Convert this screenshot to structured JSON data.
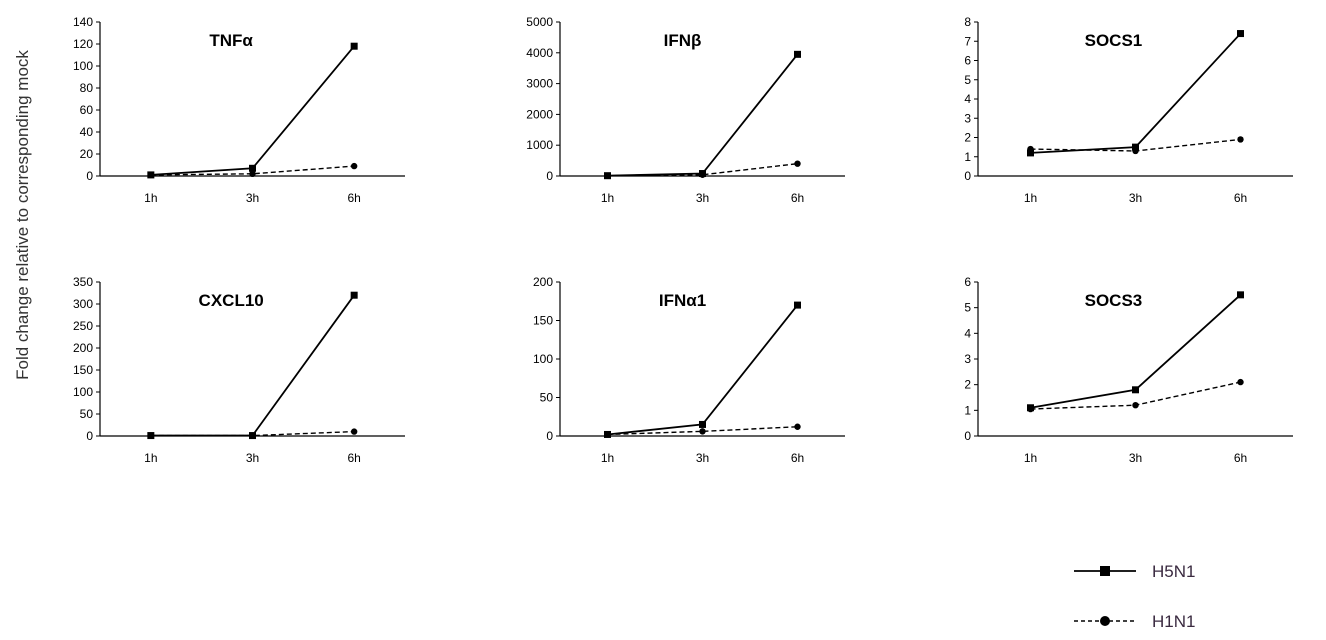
{
  "ylabel": "Fold change relative to corresponding mock",
  "legend": {
    "series": [
      {
        "name": "H5N1",
        "style": "solid",
        "marker": "square"
      },
      {
        "name": "H1N1",
        "style": "dashed",
        "marker": "circle"
      }
    ]
  },
  "colors": {
    "line": "#000000",
    "axis": "#000000",
    "text": "#000000",
    "legend_text": "#3a2a40"
  },
  "chart_data": [
    {
      "type": "line",
      "title": "TNFα",
      "categories": [
        "1h",
        "3h",
        "6h"
      ],
      "ylim": [
        0,
        140
      ],
      "yticks": [
        0,
        20,
        40,
        60,
        80,
        100,
        120,
        140
      ],
      "series": [
        {
          "name": "H5N1",
          "values": [
            1,
            7,
            118
          ]
        },
        {
          "name": "H1N1",
          "values": [
            1,
            2,
            9
          ]
        }
      ]
    },
    {
      "type": "line",
      "title": "IFNβ",
      "categories": [
        "1h",
        "3h",
        "6h"
      ],
      "ylim": [
        0,
        5000
      ],
      "yticks": [
        0,
        1000,
        2000,
        3000,
        4000,
        5000
      ],
      "series": [
        {
          "name": "H5N1",
          "values": [
            10,
            80,
            3950
          ]
        },
        {
          "name": "H1N1",
          "values": [
            10,
            40,
            400
          ]
        }
      ]
    },
    {
      "type": "line",
      "title": "SOCS1",
      "categories": [
        "1h",
        "3h",
        "6h"
      ],
      "ylim": [
        0,
        8
      ],
      "yticks": [
        0,
        1,
        2,
        3,
        4,
        5,
        6,
        7,
        8
      ],
      "series": [
        {
          "name": "H5N1",
          "values": [
            1.2,
            1.5,
            7.4
          ]
        },
        {
          "name": "H1N1",
          "values": [
            1.4,
            1.3,
            1.9
          ]
        }
      ]
    },
    {
      "type": "line",
      "title": "CXCL10",
      "categories": [
        "1h",
        "3h",
        "6h"
      ],
      "ylim": [
        0,
        350
      ],
      "yticks": [
        0,
        50,
        100,
        150,
        200,
        250,
        300,
        350
      ],
      "series": [
        {
          "name": "H5N1",
          "values": [
            1,
            1,
            320
          ]
        },
        {
          "name": "H1N1",
          "values": [
            1,
            1,
            10
          ]
        }
      ]
    },
    {
      "type": "line",
      "title": "IFNα1",
      "categories": [
        "1h",
        "3h",
        "6h"
      ],
      "ylim": [
        0,
        200
      ],
      "yticks": [
        0,
        50,
        100,
        150,
        200
      ],
      "series": [
        {
          "name": "H5N1",
          "values": [
            2,
            15,
            170
          ]
        },
        {
          "name": "H1N1",
          "values": [
            2,
            6,
            12
          ]
        }
      ]
    },
    {
      "type": "line",
      "title": "SOCS3",
      "categories": [
        "1h",
        "3h",
        "6h"
      ],
      "ylim": [
        0,
        6
      ],
      "yticks": [
        0,
        1,
        2,
        3,
        4,
        5,
        6
      ],
      "series": [
        {
          "name": "H5N1",
          "values": [
            1.1,
            1.8,
            5.5
          ]
        },
        {
          "name": "H1N1",
          "values": [
            1.05,
            1.2,
            2.1
          ]
        }
      ]
    }
  ]
}
